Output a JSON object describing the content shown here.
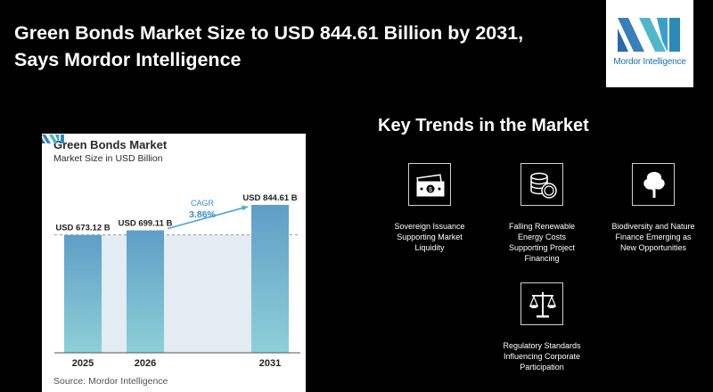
{
  "headline": {
    "line1": "Green Bonds Market Size to USD 844.61 Billion by 2031,",
    "line2": "Says Mordor Intelligence"
  },
  "logo": {
    "text": "Mordor Intelligence"
  },
  "chart_data": {
    "type": "bar",
    "title": "Green Bonds Market",
    "subtitle": "Market Size in USD Billion",
    "categories": [
      "2025",
      "2026",
      "2031"
    ],
    "values": [
      673.12,
      699.11,
      844.61
    ],
    "data_labels": [
      "USD 673.12 B",
      "USD 699.11 B",
      "USD 844.61 B"
    ],
    "cagr_label": "CAGR",
    "cagr_value": "3.86%",
    "reference_line": 673.12,
    "source": "Source:  Mordor Intelligence",
    "colors": {
      "bar_top": "#5f9ec7",
      "bar_bottom": "#8dd0d8",
      "band": "#e3ebf3",
      "arrow": "#4aa8d8",
      "cagr_text": "#3a8fc8"
    }
  },
  "trends": {
    "title": "Key Trends in the Market",
    "items": [
      {
        "icon": "money-icon",
        "label_lines": [
          "Sovereign Issuance",
          "Supporting Market",
          "Liquidity"
        ]
      },
      {
        "icon": "coins-icon",
        "label_lines": [
          "Falling Renewable",
          "Energy Costs",
          "Supporting Project",
          "Financing"
        ]
      },
      {
        "icon": "tree-icon",
        "label_lines": [
          "Biodiversity and Nature",
          "Finance Emerging as",
          "New Opportunities"
        ]
      },
      {
        "icon": "scales-icon",
        "label_lines": [
          "Regulatory Standards",
          "Influencing Corporate",
          "Participation"
        ]
      }
    ]
  }
}
